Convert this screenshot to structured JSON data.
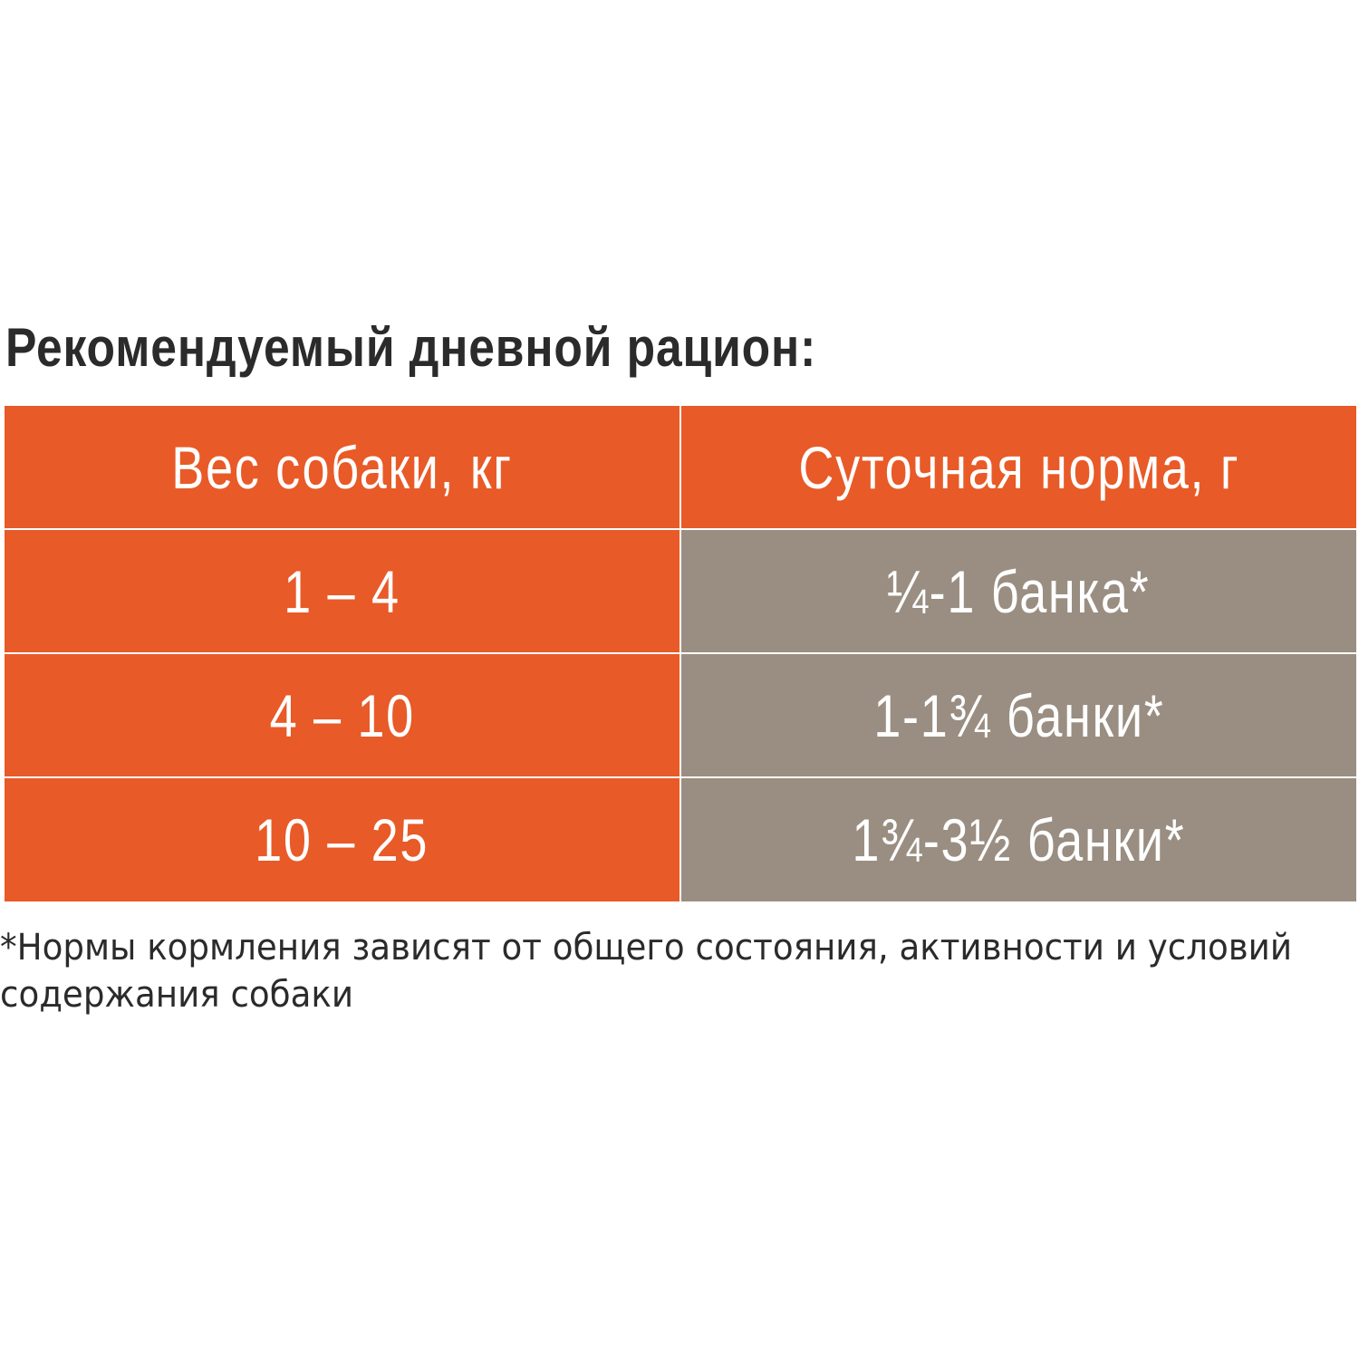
{
  "title": "Рекомендуемый дневной рацион:",
  "table": {
    "headers": [
      "Вес собаки, кг",
      "Суточная норма, г"
    ],
    "rows": [
      [
        "1 – 4",
        "¼-1 банка*"
      ],
      [
        "4 – 10",
        "1-1¾ банки*"
      ],
      [
        "10 – 25",
        "1¾-3½ банки*"
      ]
    ]
  },
  "footnote": {
    "line1": "*Нормы кормления зависят от общего состояния, активности и условий",
    "line2": "содержания собаки"
  },
  "colors": {
    "accent_orange": "#e85a27",
    "cell_gray": "#998e81",
    "text_dark": "#2b2b2b",
    "cell_text": "#ffffff"
  }
}
